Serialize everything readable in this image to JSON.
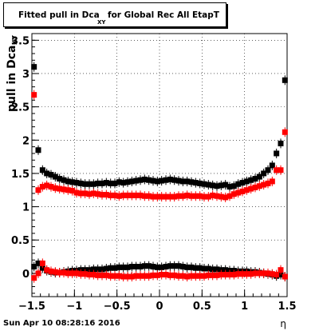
{
  "title": {
    "main": "Fitted pull in Dca",
    "subscript": "XY",
    "rest": "for Global Rec All EtapT"
  },
  "footer_date": "Sun Apr 10 08:28:16 2016",
  "chart_data": {
    "type": "scatter",
    "title": "Fitted pull in Dca_XY for Global Rec All EtapT",
    "xlabel": "η",
    "ylabel": "pull in Dca_XY",
    "xlim": [
      -1.5,
      1.5
    ],
    "ylim": [
      -0.35,
      3.6
    ],
    "xticks": [
      "−1.5",
      "−1",
      "−0.5",
      "0",
      "0.5",
      "1",
      "1.5"
    ],
    "xtick_values": [
      -1.5,
      -1,
      -0.5,
      0,
      0.5,
      1,
      1.5
    ],
    "yticks": [
      "0",
      "0.5",
      "1",
      "1.5",
      "2",
      "2.5",
      "3",
      "3.5"
    ],
    "ytick_values": [
      0,
      0.5,
      1,
      1.5,
      2,
      2.5,
      3,
      3.5
    ],
    "grid": true,
    "series": [
      {
        "color": "#000000",
        "marker": "square",
        "role": "width",
        "x": [
          -1.475,
          -1.425,
          -1.375,
          -1.325,
          -1.275,
          -1.225,
          -1.175,
          -1.125,
          -1.075,
          -1.025,
          -0.975,
          -0.925,
          -0.875,
          -0.825,
          -0.775,
          -0.725,
          -0.675,
          -0.625,
          -0.575,
          -0.525,
          -0.475,
          -0.425,
          -0.375,
          -0.325,
          -0.275,
          -0.225,
          -0.175,
          -0.125,
          -0.075,
          -0.025,
          0.025,
          0.075,
          0.125,
          0.175,
          0.225,
          0.275,
          0.325,
          0.375,
          0.425,
          0.475,
          0.525,
          0.575,
          0.625,
          0.675,
          0.725,
          0.775,
          0.825,
          0.875,
          0.925,
          0.975,
          1.025,
          1.075,
          1.125,
          1.175,
          1.225,
          1.275,
          1.325,
          1.375,
          1.425,
          1.475
        ],
        "y": [
          3.1,
          1.85,
          1.55,
          1.5,
          1.48,
          1.45,
          1.42,
          1.4,
          1.38,
          1.37,
          1.36,
          1.35,
          1.34,
          1.34,
          1.34,
          1.35,
          1.35,
          1.36,
          1.35,
          1.35,
          1.37,
          1.36,
          1.37,
          1.38,
          1.39,
          1.4,
          1.41,
          1.4,
          1.39,
          1.38,
          1.39,
          1.4,
          1.41,
          1.4,
          1.39,
          1.38,
          1.38,
          1.37,
          1.36,
          1.35,
          1.34,
          1.33,
          1.32,
          1.31,
          1.32,
          1.33,
          1.3,
          1.31,
          1.34,
          1.36,
          1.38,
          1.4,
          1.42,
          1.45,
          1.5,
          1.55,
          1.62,
          1.8,
          1.95,
          2.9
        ]
      },
      {
        "color": "#ff0000",
        "marker": "square",
        "role": "width",
        "x": [
          -1.475,
          -1.425,
          -1.375,
          -1.325,
          -1.275,
          -1.225,
          -1.175,
          -1.125,
          -1.075,
          -1.025,
          -0.975,
          -0.925,
          -0.875,
          -0.825,
          -0.775,
          -0.725,
          -0.675,
          -0.625,
          -0.575,
          -0.525,
          -0.475,
          -0.425,
          -0.375,
          -0.325,
          -0.275,
          -0.225,
          -0.175,
          -0.125,
          -0.075,
          -0.025,
          0.025,
          0.075,
          0.125,
          0.175,
          0.225,
          0.275,
          0.325,
          0.375,
          0.425,
          0.475,
          0.525,
          0.575,
          0.625,
          0.675,
          0.725,
          0.775,
          0.825,
          0.875,
          0.925,
          0.975,
          1.025,
          1.075,
          1.125,
          1.175,
          1.225,
          1.275,
          1.325,
          1.375,
          1.425,
          1.475
        ],
        "y": [
          2.68,
          1.25,
          1.3,
          1.32,
          1.3,
          1.28,
          1.27,
          1.26,
          1.25,
          1.24,
          1.21,
          1.2,
          1.2,
          1.19,
          1.2,
          1.19,
          1.18,
          1.18,
          1.17,
          1.17,
          1.16,
          1.17,
          1.17,
          1.17,
          1.17,
          1.17,
          1.16,
          1.16,
          1.15,
          1.15,
          1.15,
          1.15,
          1.15,
          1.15,
          1.16,
          1.16,
          1.17,
          1.16,
          1.16,
          1.16,
          1.15,
          1.15,
          1.17,
          1.16,
          1.15,
          1.14,
          1.16,
          1.19,
          1.21,
          1.23,
          1.25,
          1.27,
          1.29,
          1.31,
          1.33,
          1.35,
          1.38,
          1.55,
          1.55,
          2.12
        ]
      },
      {
        "color": "#000000",
        "marker": "square",
        "role": "mean",
        "x": [
          -1.475,
          -1.425,
          -1.375,
          -1.325,
          -1.275,
          -1.225,
          -1.175,
          -1.125,
          -1.075,
          -1.025,
          -0.975,
          -0.925,
          -0.875,
          -0.825,
          -0.775,
          -0.725,
          -0.675,
          -0.625,
          -0.575,
          -0.525,
          -0.475,
          -0.425,
          -0.375,
          -0.325,
          -0.275,
          -0.225,
          -0.175,
          -0.125,
          -0.075,
          -0.025,
          0.025,
          0.075,
          0.125,
          0.175,
          0.225,
          0.275,
          0.325,
          0.375,
          0.425,
          0.475,
          0.525,
          0.575,
          0.625,
          0.675,
          0.725,
          0.775,
          0.825,
          0.875,
          0.925,
          0.975,
          1.025,
          1.075,
          1.125,
          1.175,
          1.225,
          1.275,
          1.325,
          1.375,
          1.425,
          1.475
        ],
        "y": [
          0.1,
          0.15,
          0.08,
          0.04,
          0.02,
          0.01,
          0.01,
          0.02,
          0.03,
          0.04,
          0.04,
          0.05,
          0.05,
          0.05,
          0.06,
          0.06,
          0.06,
          0.07,
          0.08,
          0.08,
          0.09,
          0.09,
          0.09,
          0.1,
          0.1,
          0.1,
          0.11,
          0.11,
          0.1,
          0.09,
          0.09,
          0.1,
          0.11,
          0.11,
          0.11,
          0.1,
          0.09,
          0.09,
          0.08,
          0.08,
          0.07,
          0.07,
          0.06,
          0.06,
          0.05,
          0.05,
          0.04,
          0.04,
          0.03,
          0.03,
          0.03,
          0.02,
          0.02,
          0.01,
          0.0,
          -0.01,
          -0.02,
          -0.04,
          -0.02,
          -0.05
        ]
      },
      {
        "color": "#ff0000",
        "marker": "square",
        "role": "mean",
        "x": [
          -1.475,
          -1.425,
          -1.375,
          -1.325,
          -1.275,
          -1.225,
          -1.175,
          -1.125,
          -1.075,
          -1.025,
          -0.975,
          -0.925,
          -0.875,
          -0.825,
          -0.775,
          -0.725,
          -0.675,
          -0.625,
          -0.575,
          -0.525,
          -0.475,
          -0.425,
          -0.375,
          -0.325,
          -0.275,
          -0.225,
          -0.175,
          -0.125,
          -0.075,
          -0.025,
          0.025,
          0.075,
          0.125,
          0.175,
          0.225,
          0.275,
          0.325,
          0.375,
          0.425,
          0.475,
          0.525,
          0.575,
          0.625,
          0.675,
          0.725,
          0.775,
          0.825,
          0.875,
          0.925,
          0.975,
          1.025,
          1.075,
          1.125,
          1.175,
          1.225,
          1.275,
          1.325,
          1.375,
          1.425,
          1.475
        ],
        "y": [
          -0.07,
          0.0,
          0.15,
          0.05,
          0.03,
          0.02,
          0.01,
          0.01,
          0.0,
          0.0,
          0.0,
          -0.01,
          -0.01,
          -0.02,
          -0.02,
          -0.03,
          -0.03,
          -0.03,
          -0.04,
          -0.04,
          -0.04,
          -0.05,
          -0.05,
          -0.05,
          -0.04,
          -0.04,
          -0.04,
          -0.04,
          -0.03,
          -0.03,
          -0.02,
          -0.02,
          -0.03,
          -0.03,
          -0.04,
          -0.04,
          -0.05,
          -0.04,
          -0.04,
          -0.04,
          -0.04,
          -0.03,
          -0.03,
          -0.03,
          -0.02,
          -0.02,
          -0.02,
          -0.02,
          -0.01,
          -0.01,
          -0.01,
          -0.01,
          0.0,
          0.0,
          0.0,
          0.0,
          -0.01,
          -0.02,
          0.05,
          -0.05
        ]
      }
    ]
  }
}
